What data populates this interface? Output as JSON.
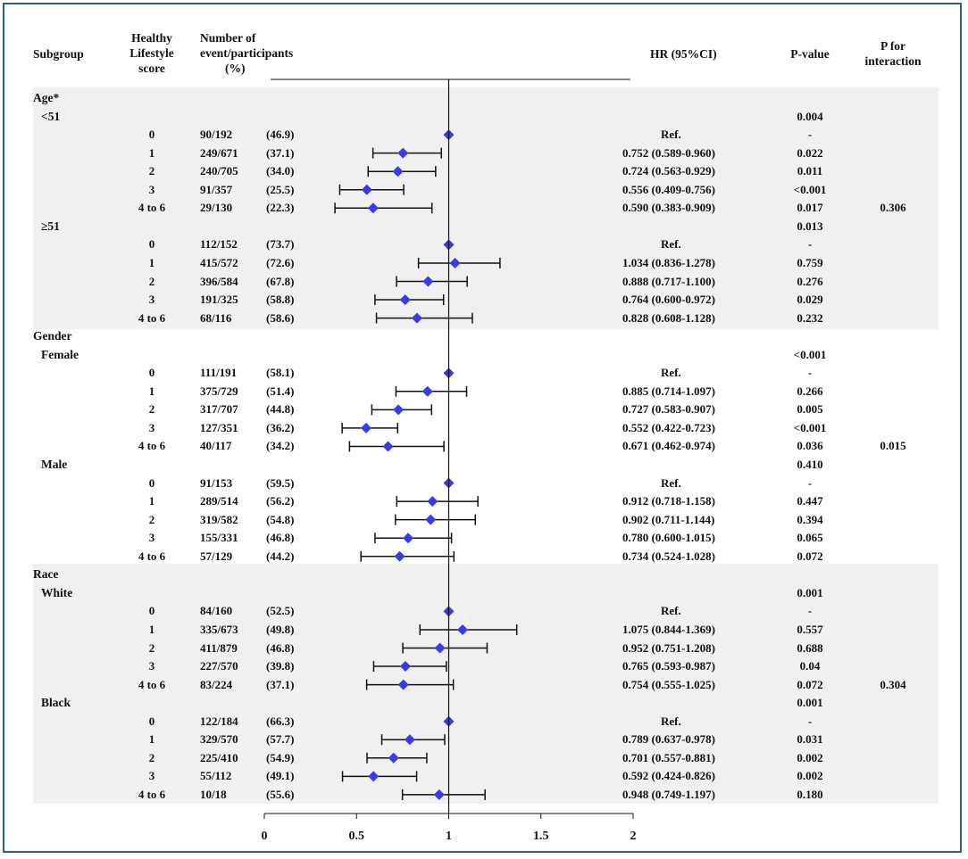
{
  "headers": {
    "subgroup": "Subgroup",
    "score_l1": "Healthy",
    "score_l2": "Lifestyle",
    "score_l3": "score",
    "events_l1": "Number of",
    "events_l2": "event/participants",
    "events_l3": "(%)",
    "hr": "HR (95%CI)",
    "pvalue": "P-value",
    "pint_l1": "P for",
    "pint_l2": "interaction"
  },
  "colors": {
    "frame": "#2e5c8a",
    "band": "#f0f0f0",
    "marker": "#3a3ae8"
  },
  "chart_data": {
    "type": "forest",
    "xlim": [
      0,
      2
    ],
    "reference_line": 1,
    "xticks": [
      {
        "v": 0,
        "label": "0"
      },
      {
        "v": 0.5,
        "label": "0.5"
      },
      {
        "v": 1,
        "label": "1"
      },
      {
        "v": 1.5,
        "label": "1.5"
      },
      {
        "v": 2,
        "label": "2"
      }
    ],
    "groups": [
      {
        "label": "Age*",
        "interaction_p": "0.306",
        "subgroups": [
          {
            "label": "<51",
            "p_trend": "0.004",
            "rows": [
              {
                "score": "0",
                "events": "90/192",
                "pct": "(46.9)",
                "hr": null,
                "lo": null,
                "hi": null,
                "ci_text": "Ref.",
                "p": "-"
              },
              {
                "score": "1",
                "events": "249/671",
                "pct": "(37.1)",
                "hr": 0.752,
                "lo": 0.589,
                "hi": 0.96,
                "ci_text": "0.752 (0.589-0.960)",
                "p": "0.022"
              },
              {
                "score": "2",
                "events": "240/705",
                "pct": "(34.0)",
                "hr": 0.724,
                "lo": 0.563,
                "hi": 0.929,
                "ci_text": "0.724 (0.563-0.929)",
                "p": "0.011"
              },
              {
                "score": "3",
                "events": "91/357",
                "pct": "(25.5)",
                "hr": 0.556,
                "lo": 0.409,
                "hi": 0.756,
                "ci_text": "0.556 (0.409-0.756)",
                "p": "<0.001"
              },
              {
                "score": "4 to 6",
                "events": "29/130",
                "pct": "(22.3)",
                "hr": 0.59,
                "lo": 0.383,
                "hi": 0.909,
                "ci_text": "0.590 (0.383-0.909)",
                "p": "0.017"
              }
            ]
          },
          {
            "label": "≥51",
            "p_trend": "0.013",
            "rows": [
              {
                "score": "0",
                "events": "112/152",
                "pct": "(73.7)",
                "hr": null,
                "lo": null,
                "hi": null,
                "ci_text": "Ref.",
                "p": "-"
              },
              {
                "score": "1",
                "events": "415/572",
                "pct": "(72.6)",
                "hr": 1.034,
                "lo": 0.836,
                "hi": 1.278,
                "ci_text": "1.034 (0.836-1.278)",
                "p": "0.759"
              },
              {
                "score": "2",
                "events": "396/584",
                "pct": "(67.8)",
                "hr": 0.888,
                "lo": 0.717,
                "hi": 1.1,
                "ci_text": "0.888 (0.717-1.100)",
                "p": "0.276"
              },
              {
                "score": "3",
                "events": "191/325",
                "pct": "(58.8)",
                "hr": 0.764,
                "lo": 0.6,
                "hi": 0.972,
                "ci_text": "0.764 (0.600-0.972)",
                "p": "0.029"
              },
              {
                "score": "4 to 6",
                "events": "68/116",
                "pct": "(58.6)",
                "hr": 0.828,
                "lo": 0.608,
                "hi": 1.128,
                "ci_text": "0.828 (0.608-1.128)",
                "p": "0.232"
              }
            ]
          }
        ]
      },
      {
        "label": "Gender",
        "interaction_p": "0.015",
        "subgroups": [
          {
            "label": "Female",
            "p_trend": "<0.001",
            "rows": [
              {
                "score": "0",
                "events": "111/191",
                "pct": "(58.1)",
                "hr": null,
                "lo": null,
                "hi": null,
                "ci_text": "Ref.",
                "p": "-"
              },
              {
                "score": "1",
                "events": "375/729",
                "pct": "(51.4)",
                "hr": 0.885,
                "lo": 0.714,
                "hi": 1.097,
                "ci_text": "0.885 (0.714-1.097)",
                "p": "0.266"
              },
              {
                "score": "2",
                "events": "317/707",
                "pct": "(44.8)",
                "hr": 0.727,
                "lo": 0.583,
                "hi": 0.907,
                "ci_text": "0.727 (0.583-0.907)",
                "p": "0.005"
              },
              {
                "score": "3",
                "events": "127/351",
                "pct": "(36.2)",
                "hr": 0.552,
                "lo": 0.422,
                "hi": 0.723,
                "ci_text": "0.552 (0.422-0.723)",
                "p": "<0.001"
              },
              {
                "score": "4 to 6",
                "events": "40/117",
                "pct": "(34.2)",
                "hr": 0.671,
                "lo": 0.462,
                "hi": 0.974,
                "ci_text": "0.671 (0.462-0.974)",
                "p": "0.036"
              }
            ]
          },
          {
            "label": "Male",
            "p_trend": "0.410",
            "rows": [
              {
                "score": "0",
                "events": "91/153",
                "pct": "(59.5)",
                "hr": null,
                "lo": null,
                "hi": null,
                "ci_text": "Ref.",
                "p": "-"
              },
              {
                "score": "1",
                "events": "289/514",
                "pct": "(56.2)",
                "hr": 0.912,
                "lo": 0.718,
                "hi": 1.158,
                "ci_text": "0.912 (0.718-1.158)",
                "p": "0.447"
              },
              {
                "score": "2",
                "events": "319/582",
                "pct": "(54.8)",
                "hr": 0.902,
                "lo": 0.711,
                "hi": 1.144,
                "ci_text": "0.902 (0.711-1.144)",
                "p": "0.394"
              },
              {
                "score": "3",
                "events": "155/331",
                "pct": "(46.8)",
                "hr": 0.78,
                "lo": 0.6,
                "hi": 1.015,
                "ci_text": "0.780 (0.600-1.015)",
                "p": "0.065"
              },
              {
                "score": "4 to 6",
                "events": "57/129",
                "pct": "(44.2)",
                "hr": 0.734,
                "lo": 0.524,
                "hi": 1.028,
                "ci_text": "0.734 (0.524-1.028)",
                "p": "0.072"
              }
            ]
          }
        ]
      },
      {
        "label": "Race",
        "interaction_p": "0.304",
        "subgroups": [
          {
            "label": "White",
            "p_trend": "0.001",
            "rows": [
              {
                "score": "0",
                "events": "84/160",
                "pct": "(52.5)",
                "hr": null,
                "lo": null,
                "hi": null,
                "ci_text": "Ref.",
                "p": "-"
              },
              {
                "score": "1",
                "events": "335/673",
                "pct": "(49.8)",
                "hr": 1.075,
                "lo": 0.844,
                "hi": 1.369,
                "ci_text": "1.075 (0.844-1.369)",
                "p": "0.557"
              },
              {
                "score": "2",
                "events": "411/879",
                "pct": "(46.8)",
                "hr": 0.952,
                "lo": 0.751,
                "hi": 1.208,
                "ci_text": "0.952 (0.751-1.208)",
                "p": "0.688"
              },
              {
                "score": "3",
                "events": "227/570",
                "pct": "(39.8)",
                "hr": 0.765,
                "lo": 0.593,
                "hi": 0.987,
                "ci_text": "0.765 (0.593-0.987)",
                "p": "0.04"
              },
              {
                "score": "4 to 6",
                "events": "83/224",
                "pct": "(37.1)",
                "hr": 0.754,
                "lo": 0.555,
                "hi": 1.025,
                "ci_text": "0.754 (0.555-1.025)",
                "p": "0.072"
              }
            ]
          },
          {
            "label": "Black",
            "p_trend": "0.001",
            "rows": [
              {
                "score": "0",
                "events": "122/184",
                "pct": "(66.3)",
                "hr": null,
                "lo": null,
                "hi": null,
                "ci_text": "Ref.",
                "p": "-"
              },
              {
                "score": "1",
                "events": "329/570",
                "pct": "(57.7)",
                "hr": 0.789,
                "lo": 0.637,
                "hi": 0.978,
                "ci_text": "0.789 (0.637-0.978)",
                "p": "0.031"
              },
              {
                "score": "2",
                "events": "225/410",
                "pct": "(54.9)",
                "hr": 0.701,
                "lo": 0.557,
                "hi": 0.881,
                "ci_text": "0.701 (0.557-0.881)",
                "p": "0.002"
              },
              {
                "score": "3",
                "events": "55/112",
                "pct": "(49.1)",
                "hr": 0.592,
                "lo": 0.424,
                "hi": 0.826,
                "ci_text": "0.592 (0.424-0.826)",
                "p": "0.002"
              },
              {
                "score": "4 to 6",
                "events": "10/18",
                "pct": "(55.6)",
                "hr": 0.948,
                "lo": 0.749,
                "hi": 1.197,
                "ci_text": "0.948 (0.749-1.197)",
                "p": "0.180"
              }
            ]
          }
        ]
      }
    ]
  }
}
